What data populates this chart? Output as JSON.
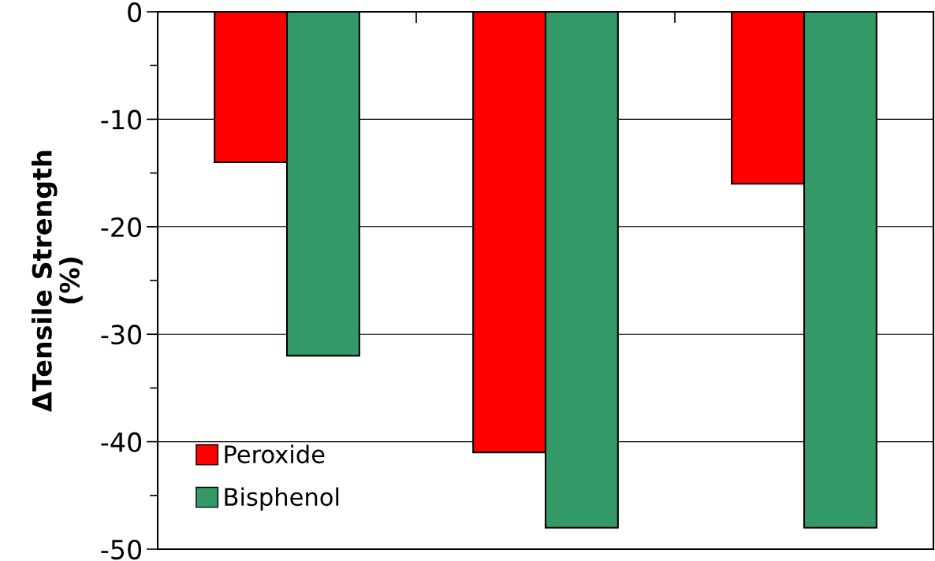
{
  "chart_data": {
    "type": "bar",
    "ylabel": "ΔTensile Strength\n(%)",
    "categories": [
      null,
      null,
      null
    ],
    "series": [
      {
        "name": "Peroxide",
        "color": "#ff0000",
        "values": [
          -14,
          -41,
          -16
        ]
      },
      {
        "name": "Bisphenol",
        "color": "#339966",
        "values": [
          -32,
          -48,
          -48
        ]
      }
    ],
    "ylim": [
      -50,
      0
    ],
    "yticks": [
      -50,
      {
        "value": -45,
        "label": null
      },
      -40,
      {
        "value": -35,
        "label": null
      },
      -30,
      {
        "value": -25,
        "label": null
      },
      -20,
      {
        "value": -15,
        "label": null
      },
      -10,
      {
        "value": -5,
        "label": null
      },
      0
    ],
    "grid": "y",
    "legend": "bottom left"
  }
}
